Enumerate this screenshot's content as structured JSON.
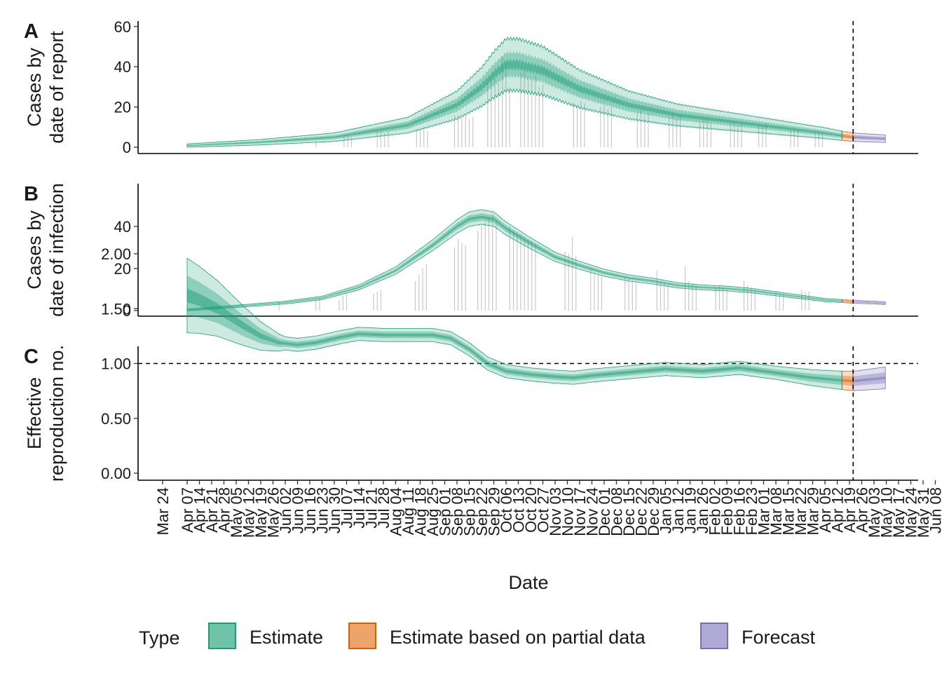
{
  "chart_data": {
    "type": "area",
    "xlabel": "Date",
    "x_ticks": [
      "Mar 24",
      "Apr 07",
      "Apr 14",
      "Apr 21",
      "Apr 28",
      "May 05",
      "May 12",
      "May 19",
      "May 26",
      "Jun 02",
      "Jun 09",
      "Jun 16",
      "Jun 23",
      "Jun 30",
      "Jul 07",
      "Jul 14",
      "Jul 21",
      "Jul 28",
      "Aug 04",
      "Aug 11",
      "Aug 18",
      "Aug 25",
      "Sep 01",
      "Sep 08",
      "Sep 15",
      "Sep 22",
      "Sep 29",
      "Oct 06",
      "Oct 13",
      "Oct 20",
      "Oct 27",
      "Nov 03",
      "Nov 10",
      "Nov 17",
      "Nov 24",
      "Dec 01",
      "Dec 08",
      "Dec 15",
      "Dec 22",
      "Dec 29",
      "Jan 05",
      "Jan 12",
      "Jan 19",
      "Jan 26",
      "Feb 02",
      "Feb 09",
      "Feb 16",
      "Feb 23",
      "Mar 01",
      "Mar 08",
      "Mar 15",
      "Mar 22",
      "Mar 29",
      "Apr 05",
      "Apr 12",
      "Apr 19",
      "Apr 26",
      "May 03",
      "May 10",
      "May 17",
      "May 24",
      "May 31",
      "Jun 08"
    ],
    "x_range_weeks": [
      0,
      63
    ],
    "forecast_start_week": 56.3,
    "legend": {
      "title": "Type",
      "position": "bottom",
      "entries": [
        {
          "label": "Estimate",
          "fill": "#6fc3a7",
          "stroke": "#1b9e77"
        },
        {
          "label": "Estimate based on partial data",
          "fill": "#eda46b",
          "stroke": "#d95f02"
        },
        {
          "label": "Forecast",
          "fill": "#aeaad3",
          "stroke": "#7570b3"
        }
      ]
    },
    "panels": [
      {
        "id": "A",
        "ylabel": [
          "Cases by",
          "date of report"
        ],
        "ylim": [
          0,
          62
        ],
        "yticks": [
          "0",
          "20",
          "40",
          "60"
        ],
        "ytick_values": [
          0,
          20,
          40,
          60
        ],
        "median_knots": [
          [
            2,
            0.8
          ],
          [
            8,
            2.5
          ],
          [
            14,
            5
          ],
          [
            20,
            11
          ],
          [
            24,
            21
          ],
          [
            26,
            30
          ],
          [
            27,
            36
          ],
          [
            28,
            41
          ],
          [
            29,
            41
          ],
          [
            31,
            38
          ],
          [
            34,
            29
          ],
          [
            38,
            21
          ],
          [
            42,
            16
          ],
          [
            46,
            13
          ],
          [
            50,
            10
          ],
          [
            54,
            7
          ],
          [
            55.6,
            5.5
          ],
          [
            56.3,
            5
          ],
          [
            59,
            4.2
          ]
        ],
        "bar_weeks": [
          12.5,
          14.8,
          15.1,
          15.4,
          17.5,
          17.8,
          18.1,
          18.4,
          20.7,
          21,
          21.3,
          21.6,
          23.8,
          24.1,
          24.4,
          24.7,
          25,
          25.3,
          26.5,
          26.8,
          27.1,
          27.4,
          27.7,
          28,
          28.3,
          29.2,
          29.5,
          29.8,
          30.1,
          30.4,
          30.7,
          31,
          33.5,
          33.8,
          34.1,
          34.4,
          35.7,
          36,
          36.3,
          36.6,
          38.7,
          39,
          39.3,
          39.6,
          41.3,
          41.6,
          41.9,
          42.2,
          43.8,
          44.1,
          44.4,
          44.7,
          46.3,
          46.6,
          46.9,
          47.2,
          48.6,
          48.9,
          49.2,
          51.2,
          51.5,
          51.8,
          53.2,
          53.5,
          53.8
        ],
        "bar_values": [
          3,
          6,
          6,
          5,
          8,
          8,
          7,
          8,
          9,
          9,
          10,
          8,
          16,
          16,
          15,
          16,
          14,
          15,
          32,
          34,
          34,
          32,
          45,
          42,
          30,
          37,
          38,
          35,
          34,
          36,
          30,
          31,
          22,
          21,
          23,
          22,
          20,
          21,
          19,
          20,
          17,
          18,
          16,
          17,
          15,
          17,
          14,
          16,
          13,
          14,
          15,
          12,
          12,
          13,
          11,
          12,
          11,
          10,
          12,
          9,
          10,
          9,
          8,
          8,
          7
        ]
      },
      {
        "id": "B",
        "ylabel": [
          "Cases by",
          "date of infection"
        ],
        "ylim": [
          0,
          59
        ],
        "yticks": [
          "0",
          "20",
          "40"
        ],
        "ytick_values": [
          0,
          20,
          40
        ],
        "median_knots": [
          [
            2,
            0.3
          ],
          [
            6,
            2
          ],
          [
            10,
            3.8
          ],
          [
            13,
            6
          ],
          [
            16,
            11
          ],
          [
            19,
            19
          ],
          [
            22,
            31
          ],
          [
            24,
            40
          ],
          [
            25,
            43.5
          ],
          [
            26,
            44.5
          ],
          [
            27,
            43.5
          ],
          [
            28,
            39
          ],
          [
            30,
            32
          ],
          [
            32,
            25.5
          ],
          [
            34,
            21.5
          ],
          [
            36,
            18
          ],
          [
            38,
            15.5
          ],
          [
            40,
            14
          ],
          [
            42,
            12
          ],
          [
            44,
            11
          ],
          [
            46,
            10.5
          ],
          [
            48,
            9.5
          ],
          [
            50,
            8
          ],
          [
            52,
            6.5
          ],
          [
            54,
            5
          ],
          [
            56.3,
            4.2
          ],
          [
            58,
            3.8
          ],
          [
            59,
            3.5
          ]
        ],
        "bar_weeks": [
          9.5,
          12.5,
          12.8,
          14.4,
          14.7,
          15,
          17.2,
          17.5,
          17.8,
          20.6,
          20.9,
          21.2,
          21.5,
          23.8,
          24.1,
          24.4,
          24.7,
          25.7,
          26,
          26.3,
          26.6,
          26.9,
          27.2,
          28.3,
          28.6,
          28.9,
          29.2,
          29.5,
          29.8,
          30.1,
          30.4,
          32.8,
          33.1,
          33.4,
          33.7,
          34.9,
          35.2,
          35.5,
          35.8,
          37.7,
          38,
          38.3,
          38.6,
          40.3,
          40.6,
          40.9,
          41.2,
          42.6,
          42.9,
          43.2,
          43.5,
          45.1,
          45.4,
          45.7,
          46,
          47.4,
          47.7,
          48,
          48.3,
          50,
          50.3,
          50.6,
          52.1,
          52.4,
          52.7
        ],
        "bar_values": [
          4,
          5,
          6,
          5,
          7,
          8,
          8,
          9,
          10,
          14,
          17,
          20,
          22,
          30,
          34,
          32,
          31,
          38,
          40,
          42,
          44,
          46,
          42,
          40,
          38,
          37,
          36,
          35,
          34,
          33,
          32,
          28,
          27,
          35,
          26,
          20,
          18,
          17,
          16,
          16,
          15,
          14,
          13,
          19,
          14,
          13,
          12,
          21,
          14,
          13,
          12,
          11,
          12,
          11,
          10,
          14,
          12,
          11,
          10,
          9,
          8,
          8,
          10,
          9,
          9
        ]
      },
      {
        "id": "C",
        "ylabel": [
          "Effective",
          "reproduction no."
        ],
        "ylim": [
          0,
          2.3
        ],
        "yticks": [
          "0.00",
          "0.50",
          "1.00",
          "1.50",
          "2.00"
        ],
        "ytick_values": [
          0,
          0.5,
          1,
          1.5,
          2
        ],
        "reference_line": 1.0,
        "median_knots": [
          [
            2,
            1.62
          ],
          [
            3,
            1.58
          ],
          [
            4.5,
            1.5
          ],
          [
            6.5,
            1.35
          ],
          [
            8,
            1.25
          ],
          [
            9.5,
            1.19
          ],
          [
            11,
            1.17
          ],
          [
            12.5,
            1.19
          ],
          [
            14.5,
            1.24
          ],
          [
            16,
            1.27
          ],
          [
            18,
            1.26
          ],
          [
            20,
            1.26
          ],
          [
            22,
            1.26
          ],
          [
            23.5,
            1.23
          ],
          [
            25,
            1.13
          ],
          [
            26.5,
            1.0
          ],
          [
            28,
            0.93
          ],
          [
            30,
            0.9
          ],
          [
            32,
            0.88
          ],
          [
            33.5,
            0.87
          ],
          [
            35,
            0.89
          ],
          [
            38,
            0.92
          ],
          [
            41,
            0.95
          ],
          [
            44,
            0.93
          ],
          [
            47,
            0.96
          ],
          [
            49,
            0.93
          ],
          [
            51,
            0.9
          ],
          [
            53,
            0.87
          ],
          [
            55,
            0.85
          ],
          [
            56.3,
            0.84
          ],
          [
            59,
            0.87
          ]
        ]
      }
    ]
  }
}
